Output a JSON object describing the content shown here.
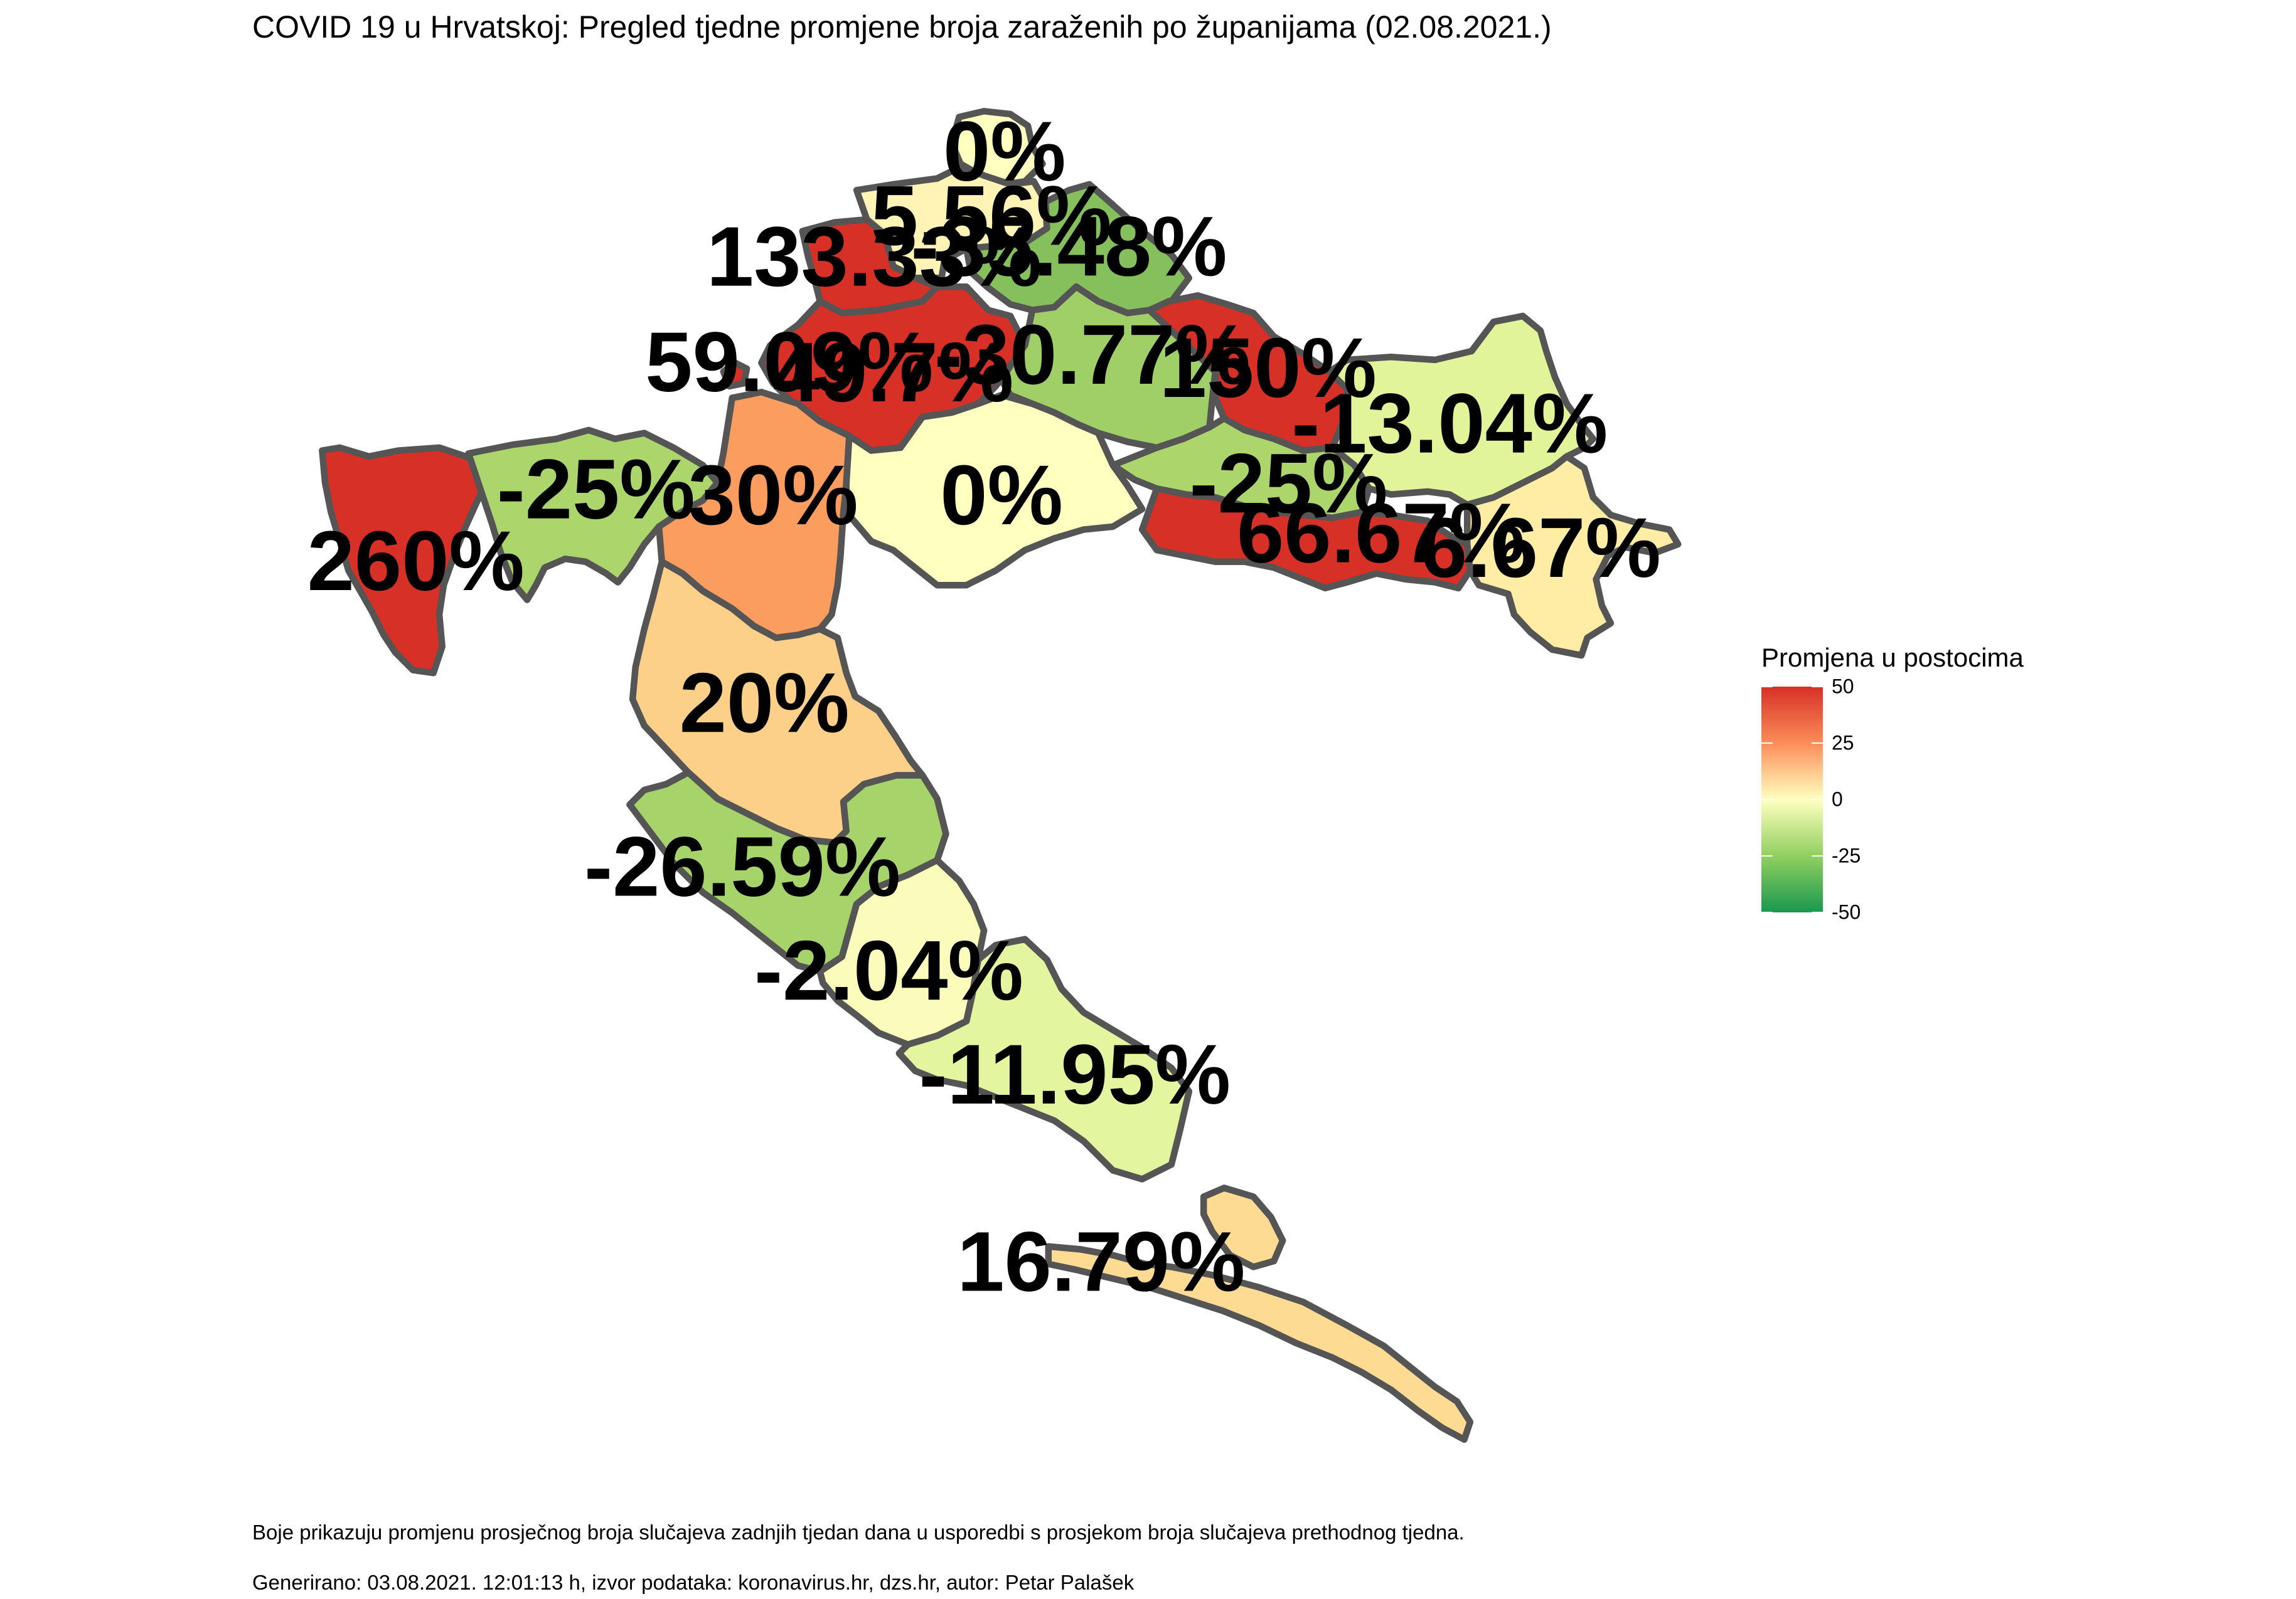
{
  "title": "COVID 19 u Hrvatskoj: Pregled tjedne promjene broja zaraženih po županijama (02.08.2021.)",
  "legend": {
    "title": "Promjena u postocima",
    "ticks": [
      "50",
      "25",
      "0",
      "-25",
      "-50"
    ],
    "scale_min": -50,
    "scale_max": 50,
    "colors": [
      "#d73027",
      "#fc8d59",
      "#ffffbf",
      "#91cf60",
      "#1a9850"
    ]
  },
  "regions": [
    {
      "label": "0%",
      "value": 0,
      "color": "#ffffbf"
    },
    {
      "label": "5.56%",
      "value": 5.56,
      "color": "#fff3b5"
    },
    {
      "label": "133.33%",
      "value": 133.33,
      "color": "#d73027"
    },
    {
      "label": "-35.48%",
      "value": -35.48,
      "color": "#86c05c"
    },
    {
      "label": "59.09%",
      "value": 59.09,
      "color": "#d73027"
    },
    {
      "label": "49.7%",
      "value": 49.7,
      "color": "#d73027"
    },
    {
      "label": "-30.77%",
      "value": -30.77,
      "color": "#9fcf66"
    },
    {
      "label": "150%",
      "value": 150,
      "color": "#d73027"
    },
    {
      "label": "-13.04%",
      "value": -13.04,
      "color": "#e2f49a"
    },
    {
      "label": "260%",
      "value": 260,
      "color": "#d73027"
    },
    {
      "label": "-25%",
      "value": -25,
      "color": "#acd56c"
    },
    {
      "label": "30%",
      "value": 30,
      "color": "#fb9d5f"
    },
    {
      "label": "0%",
      "value": 0,
      "color": "#ffffbf"
    },
    {
      "label": "-25%",
      "value": -25,
      "color": "#acd56c"
    },
    {
      "label": "66.67%",
      "value": 66.67,
      "color": "#d73027"
    },
    {
      "label": "6.67%",
      "value": 6.67,
      "color": "#ffeda6"
    },
    {
      "label": "20%",
      "value": 20,
      "color": "#fdd08a"
    },
    {
      "label": "-26.59%",
      "value": -26.59,
      "color": "#a7d46a"
    },
    {
      "label": "-2.04%",
      "value": -2.04,
      "color": "#fbfcbc"
    },
    {
      "label": "-11.95%",
      "value": -11.95,
      "color": "#e4f5a0"
    },
    {
      "label": "16.79%",
      "value": 16.79,
      "color": "#fedb93"
    }
  ],
  "caption_line1": "Boje prikazuju promjenu prosječnog broja slučajeva zadnjih tjedan dana u usporedbi s prosjekom broja slučajeva prethodnog tjedna.",
  "caption_line2": "Generirano: 03.08.2021. 12:01:13 h, izvor podataka: koronavirus.hr, dzs.hr, autor: Petar Palašek"
}
